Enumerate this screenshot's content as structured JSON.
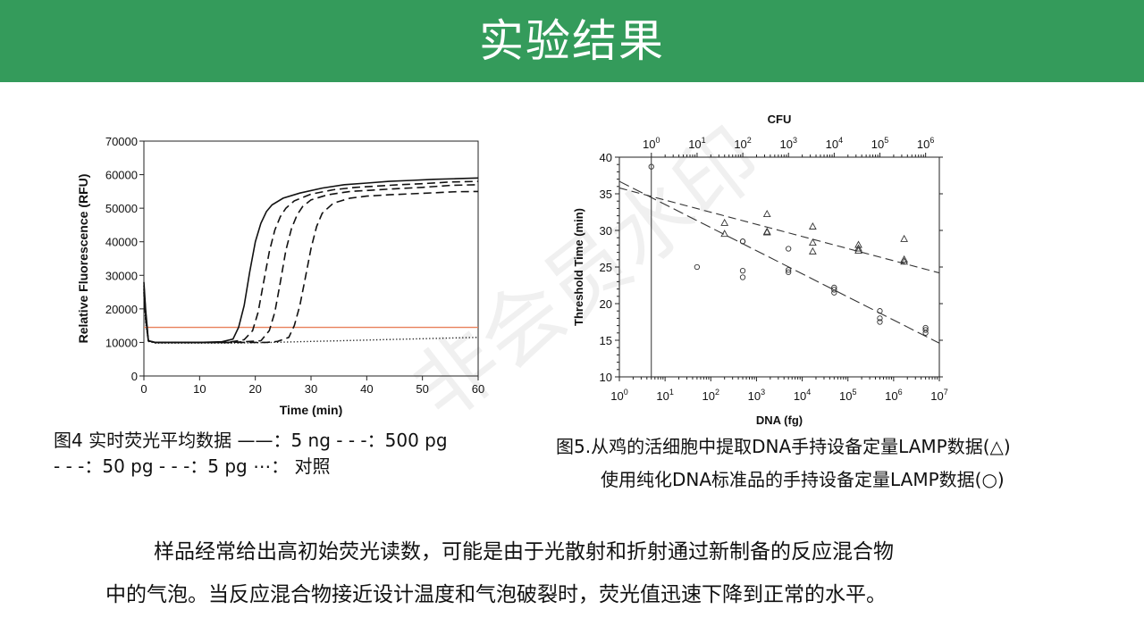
{
  "slide": {
    "title": "实验结果",
    "watermark": "非会员水印",
    "caption1_line1": "图4 实时荧光平均数据 ——：5 ng - - -：500 pg",
    "caption1_line2": "- - -：50 pg - - -：5 pg ⋯：  对照",
    "caption2_line1": "图5.从鸡的活细胞中提取DNA手持设备定量LAMP数据(△)",
    "caption2_line2": "使用纯化DNA标准品的手持设备定量LAMP数据(○)",
    "paragraph_line1": "样品经常给出高初始荧光读数，可能是由于光散射和折射通过新制备的反应混合物",
    "paragraph_line2": "中的气泡。当反应混合物接近设计温度和气泡破裂时，荧光值迅速下降到正常的水平。"
  },
  "chart_data": [
    {
      "type": "line",
      "xlabel": "Time (min)",
      "ylabel": "Relative Fluorescence (RFU)",
      "xlim": [
        0,
        60
      ],
      "ylim": [
        0,
        70000
      ],
      "xticks": [
        0,
        10,
        20,
        30,
        40,
        50,
        60
      ],
      "yticks": [
        0,
        10000,
        20000,
        30000,
        40000,
        50000,
        60000,
        70000
      ],
      "threshold": {
        "value": 14500,
        "color": "#e8805a"
      },
      "series": [
        {
          "style": "solid",
          "x": [
            0,
            0.3,
            0.8,
            2,
            5,
            10,
            14,
            16,
            17,
            18,
            19,
            20,
            21,
            22,
            23,
            25,
            28,
            32,
            36,
            40,
            44,
            48,
            52,
            56,
            60
          ],
          "y": [
            28000,
            20000,
            10500,
            10000,
            10000,
            10000,
            10200,
            11000,
            14500,
            21000,
            31000,
            40000,
            45500,
            49000,
            51000,
            53000,
            54500,
            56000,
            57000,
            57500,
            58000,
            58300,
            58600,
            58800,
            59000
          ]
        },
        {
          "style": "dashed",
          "x": [
            0,
            0.3,
            0.8,
            2,
            5,
            10,
            15,
            18,
            19.5,
            20.5,
            21.5,
            22.5,
            23.5,
            24.5,
            25.5,
            27,
            30,
            34,
            38,
            42,
            46,
            50,
            55,
            60
          ],
          "y": [
            27000,
            19000,
            10500,
            10000,
            10000,
            10000,
            10000,
            10800,
            13500,
            19000,
            28000,
            37000,
            43500,
            47500,
            50000,
            52200,
            54200,
            55500,
            56200,
            56600,
            57000,
            57300,
            57800,
            58000
          ]
        },
        {
          "style": "dashed",
          "x": [
            0,
            0.3,
            0.8,
            2,
            5,
            10,
            16,
            21,
            22.5,
            23.5,
            24.5,
            25.5,
            26.5,
            27.5,
            28.5,
            30,
            33,
            37,
            41,
            45,
            50,
            55,
            60
          ],
          "y": [
            26000,
            18000,
            10500,
            10000,
            10000,
            10000,
            10000,
            10500,
            13500,
            19000,
            28000,
            37500,
            44000,
            48000,
            50500,
            52500,
            54000,
            55000,
            55400,
            55800,
            56200,
            56800,
            57000
          ]
        },
        {
          "style": "dashed",
          "x": [
            0,
            0.3,
            0.8,
            2,
            5,
            10,
            16,
            22,
            24,
            26,
            27,
            28,
            29,
            30,
            31,
            32,
            34,
            37,
            40,
            44,
            48,
            52,
            56,
            60
          ],
          "y": [
            25000,
            17000,
            10500,
            10000,
            10000,
            10000,
            10000,
            10000,
            10300,
            11500,
            15000,
            21000,
            29500,
            38000,
            44500,
            48500,
            51500,
            53000,
            53600,
            54000,
            54300,
            54600,
            54900,
            55000
          ]
        },
        {
          "style": "dotted",
          "x": [
            0,
            0.3,
            0.8,
            2,
            5,
            10,
            15,
            20,
            25,
            30,
            35,
            40,
            45,
            50,
            55,
            60
          ],
          "y": [
            24000,
            16000,
            10300,
            9800,
            9800,
            9800,
            9800,
            9900,
            10100,
            10300,
            10500,
            10700,
            10900,
            11100,
            11300,
            11500
          ]
        }
      ]
    },
    {
      "type": "scatter",
      "xlabel": "DNA (fg)",
      "ylabel": "Threshold Time (min)",
      "top_axis_label": "CFU",
      "xscale": "log",
      "xlim": [
        1,
        10000000
      ],
      "ylim": [
        10,
        40
      ],
      "yticks": [
        10,
        15,
        20,
        25,
        30,
        35,
        40
      ],
      "xtick_exponents": [
        0,
        1,
        2,
        3,
        4,
        5,
        6,
        7
      ],
      "top_tick_exponents": [
        0,
        1,
        2,
        3,
        4,
        5,
        6
      ],
      "top_axis_offset_decades": 0.7,
      "vertical_line_x": 5,
      "series": [
        {
          "marker": "triangle",
          "x": [
            200,
            200,
            1700,
            1700,
            1700,
            17000,
            17000,
            17000,
            170000,
            170000,
            170000,
            1700000,
            1700000,
            1700000
          ],
          "y": [
            31,
            29.5,
            32.2,
            29.8,
            29.7,
            30.5,
            28.3,
            27.1,
            28.0,
            27.5,
            27.2,
            28.8,
            26.0,
            25.7
          ]
        },
        {
          "marker": "circle",
          "x": [
            5,
            50,
            500,
            500,
            500,
            500,
            5000,
            5000,
            5000,
            50000,
            50000,
            50000,
            500000,
            500000,
            500000,
            5000000,
            5000000,
            5000000
          ],
          "y": [
            38.7,
            25,
            28.5,
            24.5,
            23.6,
            28.5,
            27.5,
            24.6,
            24.3,
            22.2,
            21.9,
            21.5,
            19.0,
            18.0,
            17.5,
            16.7,
            16.4,
            16.0
          ]
        },
        {
          "fit": true,
          "style": "dashed",
          "x": [
            1,
            10000000
          ],
          "y": [
            35.8,
            24.2
          ]
        },
        {
          "fit": true,
          "style": "longdash",
          "x": [
            1,
            10000000
          ],
          "y": [
            36.7,
            14.6
          ]
        }
      ]
    }
  ]
}
